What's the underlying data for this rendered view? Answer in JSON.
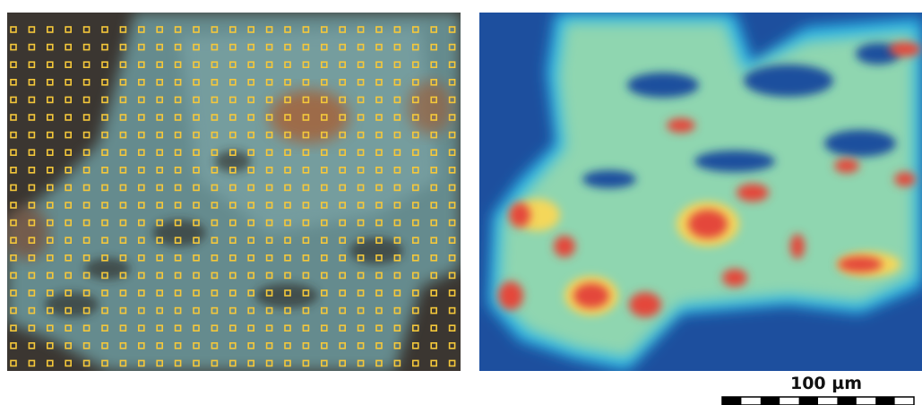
{
  "scale_bar": {
    "label": "100 µm"
  }
}
